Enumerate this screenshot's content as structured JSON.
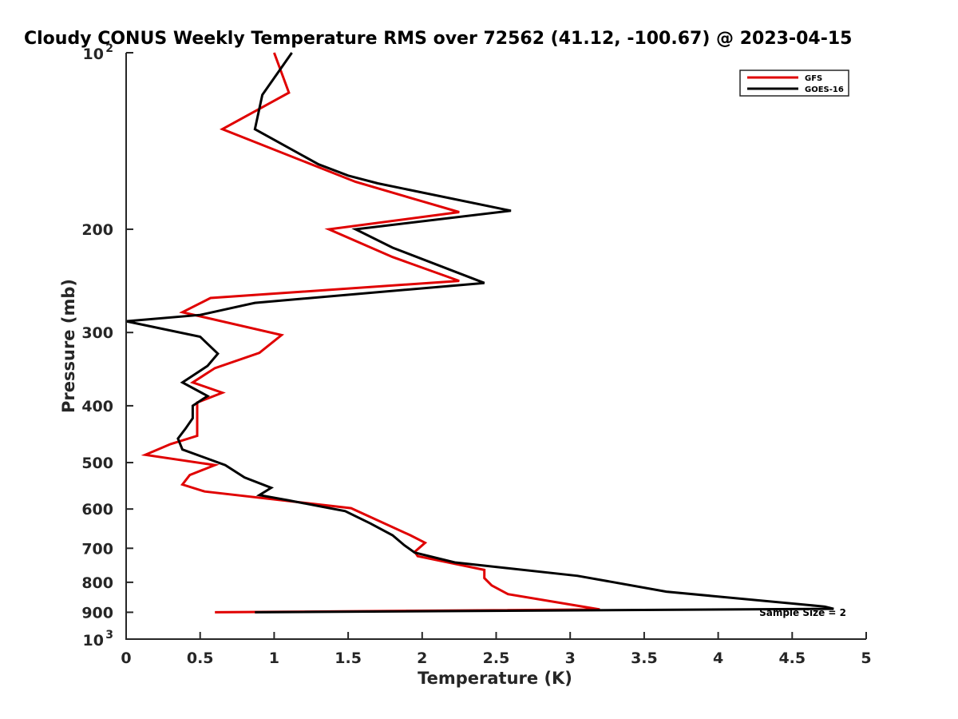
{
  "chart_data": {
    "type": "line",
    "title": "Cloudy CONUS Weekly Temperature RMS over 72562 (41.12, -100.67) @ 2023-04-15",
    "xlabel": "Temperature (K)",
    "ylabel": "Pressure (mb)",
    "xlim": [
      0,
      5
    ],
    "ylim": [
      100,
      1000
    ],
    "y_scale": "log",
    "y_reversed": true,
    "x_ticks": [
      "0",
      "0.5",
      "1",
      "1.5",
      "2",
      "2.5",
      "3",
      "3.5",
      "4",
      "4.5",
      "5"
    ],
    "y_ticks": [
      {
        "value": 200,
        "label": "200"
      },
      {
        "value": 300,
        "label": "300"
      },
      {
        "value": 400,
        "label": "400"
      },
      {
        "value": 500,
        "label": "500"
      },
      {
        "value": 600,
        "label": "600"
      },
      {
        "value": 700,
        "label": "700"
      },
      {
        "value": 800,
        "label": "800"
      },
      {
        "value": 900,
        "label": "900"
      }
    ],
    "y_power_ticks": [
      {
        "value": 100,
        "base": "10",
        "exp": "2"
      },
      {
        "value": 1000,
        "base": "10",
        "exp": "3"
      }
    ],
    "grid": false,
    "legend_position": "top-right",
    "annotation": "Sample Size = 2",
    "series": [
      {
        "name": "GFS",
        "color": "#e00000",
        "points": [
          [
            1.0,
            100
          ],
          [
            1.1,
            117
          ],
          [
            0.65,
            135
          ],
          [
            1.55,
            166
          ],
          [
            2.25,
            187
          ],
          [
            1.37,
            200
          ],
          [
            1.8,
            223
          ],
          [
            2.25,
            245
          ],
          [
            0.57,
            262
          ],
          [
            0.38,
            277
          ],
          [
            1.05,
            303
          ],
          [
            0.9,
            325
          ],
          [
            0.6,
            345
          ],
          [
            0.45,
            365
          ],
          [
            0.65,
            380
          ],
          [
            0.48,
            395
          ],
          [
            0.48,
            430
          ],
          [
            0.48,
            450
          ],
          [
            0.3,
            465
          ],
          [
            0.13,
            485
          ],
          [
            0.6,
            505
          ],
          [
            0.43,
            525
          ],
          [
            0.38,
            545
          ],
          [
            0.53,
            560
          ],
          [
            1.52,
            598
          ],
          [
            1.92,
            665
          ],
          [
            2.02,
            685
          ],
          [
            1.95,
            710
          ],
          [
            1.97,
            722
          ],
          [
            2.42,
            762
          ],
          [
            2.42,
            787
          ],
          [
            2.47,
            810
          ],
          [
            2.58,
            838
          ],
          [
            3.2,
            890
          ],
          [
            0.6,
            900
          ]
        ]
      },
      {
        "name": "GOES-16",
        "color": "#000000",
        "points": [
          [
            1.12,
            100
          ],
          [
            0.92,
            118
          ],
          [
            0.87,
            135
          ],
          [
            1.3,
            155
          ],
          [
            1.5,
            162
          ],
          [
            1.7,
            167
          ],
          [
            2.6,
            186
          ],
          [
            1.55,
            200
          ],
          [
            1.8,
            215
          ],
          [
            2.42,
            247
          ],
          [
            0.87,
            267
          ],
          [
            0.5,
            280
          ],
          [
            0.0,
            287
          ],
          [
            0.5,
            305
          ],
          [
            0.62,
            326
          ],
          [
            0.55,
            342
          ],
          [
            0.38,
            365
          ],
          [
            0.55,
            385
          ],
          [
            0.45,
            400
          ],
          [
            0.45,
            420
          ],
          [
            0.4,
            438
          ],
          [
            0.35,
            455
          ],
          [
            0.38,
            475
          ],
          [
            0.67,
            505
          ],
          [
            0.8,
            530
          ],
          [
            0.98,
            552
          ],
          [
            0.9,
            568
          ],
          [
            1.1,
            580
          ],
          [
            1.48,
            605
          ],
          [
            1.65,
            635
          ],
          [
            1.8,
            665
          ],
          [
            1.88,
            692
          ],
          [
            1.95,
            712
          ],
          [
            2.22,
            740
          ],
          [
            3.05,
            780
          ],
          [
            3.65,
            830
          ],
          [
            4.72,
            880
          ],
          [
            4.78,
            888
          ],
          [
            0.87,
            900
          ]
        ]
      }
    ]
  }
}
